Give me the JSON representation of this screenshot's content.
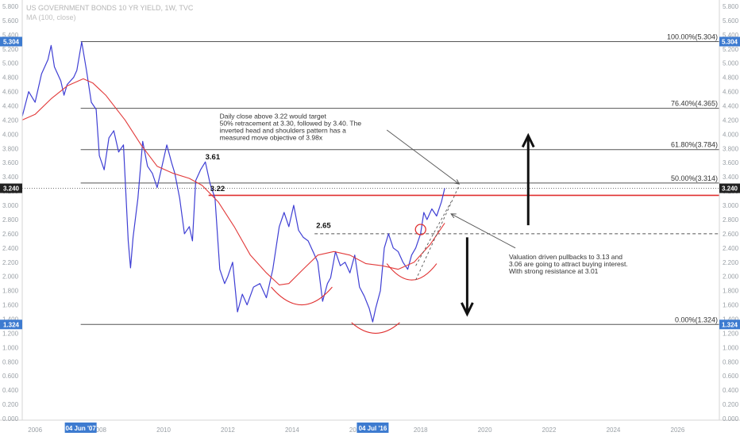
{
  "header": {
    "title": "US GOVERNMENT BONDS 10 YR YIELD, 1W, TVC",
    "indicator": "MA (100, close)"
  },
  "chart_data": {
    "type": "line",
    "title": "US GOVERNMENT BONDS 10 YR YIELD, 1W, TVC",
    "ylim": [
      0,
      5.8
    ],
    "xlim": [
      2005.6,
      2027.3
    ],
    "y_ticks": [
      "0.000",
      "0.200",
      "0.400",
      "0.600",
      "0.800",
      "1.000",
      "1.200",
      "1.400",
      "1.600",
      "1.800",
      "2.000",
      "2.200",
      "2.400",
      "2.600",
      "2.800",
      "3.000",
      "3.200",
      "3.400",
      "3.600",
      "3.800",
      "4.000",
      "4.200",
      "4.400",
      "4.600",
      "4.800",
      "5.000",
      "5.200",
      "5.400",
      "5.600",
      "5.800"
    ],
    "x_ticks": [
      "2006",
      "2008",
      "2010",
      "2012",
      "2014",
      "2016",
      "2018",
      "2020",
      "2022",
      "2024",
      "2026"
    ],
    "price_badges": [
      {
        "label": "5.304",
        "value": 5.304,
        "side": "both"
      },
      {
        "label": "3.240",
        "value": 3.24,
        "side": "both"
      },
      {
        "label": "1.324",
        "value": 1.324,
        "side": "both"
      }
    ],
    "date_badges": [
      {
        "label": "04 Jun '07",
        "x": 2007.42
      },
      {
        "label": "04 Jul '16",
        "x": 2016.51
      }
    ],
    "fib_levels": [
      {
        "label": "100.00%(5.304)",
        "value": 5.304
      },
      {
        "label": "76.40%(4.365)",
        "value": 4.365
      },
      {
        "label": "61.80%(3.784)",
        "value": 3.784
      },
      {
        "label": "50.00%(3.314)",
        "value": 3.314
      },
      {
        "label": "0.00%(1.324)",
        "value": 1.324
      }
    ],
    "fib_start_x": 2007.42,
    "price_labels": [
      {
        "label": "3.61",
        "x": 2011.3,
        "y": 3.65
      },
      {
        "label": "3.22",
        "x": 2011.45,
        "y": 3.2
      },
      {
        "label": "2.65",
        "x": 2014.75,
        "y": 2.68
      }
    ],
    "resistance_level": 3.14,
    "dashed_level": 2.6,
    "current_value": 3.24,
    "annotations": [
      {
        "text": "Daily close above 3.22 would target\n50% retracement at 3.30, followed by 3.40. The\ninverted head and shoulders pattern has a\nmeasured move objective of 3.98x",
        "x": 2007.42,
        "y": 4.2
      },
      {
        "text": "Valuation driven pullbacks to 3.13 and\n3.06 are going to attract buying interest.\nWith strong resistance at 3.01",
        "x": 2020.75,
        "y": 2.25
      }
    ],
    "series": [
      {
        "name": "",
        "color": "#3f3fd4",
        "x": [
          2005.6,
          2005.8,
          2006.0,
          2006.2,
          2006.4,
          2006.5,
          2006.6,
          2006.8,
          2006.9,
          2007.0,
          2007.2,
          2007.3,
          2007.45,
          2007.6,
          2007.75,
          2007.9,
          2008.0,
          2008.15,
          2008.3,
          2008.45,
          2008.6,
          2008.75,
          2008.9,
          2008.97,
          2009.05,
          2009.2,
          2009.35,
          2009.5,
          2009.65,
          2009.8,
          2009.95,
          2010.1,
          2010.25,
          2010.35,
          2010.5,
          2010.65,
          2010.8,
          2010.9,
          2011.0,
          2011.15,
          2011.3,
          2011.45,
          2011.6,
          2011.75,
          2011.9,
          2012.0,
          2012.15,
          2012.3,
          2012.45,
          2012.6,
          2012.8,
          2013.0,
          2013.2,
          2013.4,
          2013.6,
          2013.75,
          2013.9,
          2014.05,
          2014.2,
          2014.35,
          2014.5,
          2014.65,
          2014.8,
          2014.95,
          2015.1,
          2015.2,
          2015.35,
          2015.5,
          2015.65,
          2015.8,
          2015.95,
          2016.1,
          2016.25,
          2016.4,
          2016.51,
          2016.6,
          2016.75,
          2016.87,
          2017.0,
          2017.15,
          2017.3,
          2017.45,
          2017.6,
          2017.72,
          2017.85,
          2018.0,
          2018.1,
          2018.2,
          2018.35,
          2018.5,
          2018.65,
          2018.75
        ],
        "y": [
          4.25,
          4.6,
          4.45,
          4.85,
          5.05,
          5.25,
          4.95,
          4.75,
          4.55,
          4.7,
          4.8,
          4.9,
          5.3,
          4.9,
          4.45,
          4.35,
          3.7,
          3.5,
          3.95,
          4.05,
          3.75,
          3.85,
          2.5,
          2.12,
          2.55,
          3.1,
          3.9,
          3.55,
          3.45,
          3.25,
          3.55,
          3.85,
          3.6,
          3.45,
          3.1,
          2.6,
          2.7,
          2.5,
          3.35,
          3.5,
          3.61,
          3.3,
          3.1,
          2.1,
          1.9,
          2.0,
          2.2,
          1.5,
          1.75,
          1.6,
          1.85,
          1.9,
          1.7,
          2.1,
          2.7,
          2.9,
          2.7,
          3.0,
          2.65,
          2.55,
          2.5,
          2.35,
          2.2,
          1.65,
          1.9,
          1.98,
          2.35,
          2.15,
          2.2,
          2.05,
          2.3,
          1.85,
          1.72,
          1.55,
          1.36,
          1.55,
          1.8,
          2.4,
          2.6,
          2.4,
          2.35,
          2.2,
          2.1,
          2.3,
          2.4,
          2.6,
          2.9,
          2.8,
          2.95,
          2.85,
          3.05,
          3.24
        ]
      },
      {
        "name": "MA (100, close)",
        "color": "#e23b3b",
        "x": [
          2005.6,
          2006.0,
          2006.5,
          2007.0,
          2007.5,
          2007.8,
          2008.2,
          2008.8,
          2009.3,
          2009.8,
          2010.3,
          2010.8,
          2011.2,
          2011.7,
          2012.2,
          2012.7,
          2013.2,
          2013.6,
          2013.9,
          2014.3,
          2014.8,
          2015.3,
          2015.8,
          2016.3,
          2016.8,
          2017.3,
          2017.8,
          2018.3,
          2018.75
        ],
        "y": [
          4.2,
          4.28,
          4.5,
          4.68,
          4.78,
          4.72,
          4.55,
          4.2,
          3.85,
          3.55,
          3.45,
          3.38,
          3.28,
          3.05,
          2.7,
          2.3,
          2.05,
          1.88,
          1.9,
          2.08,
          2.3,
          2.35,
          2.3,
          2.18,
          2.15,
          2.1,
          2.2,
          2.45,
          2.75
        ]
      }
    ]
  }
}
